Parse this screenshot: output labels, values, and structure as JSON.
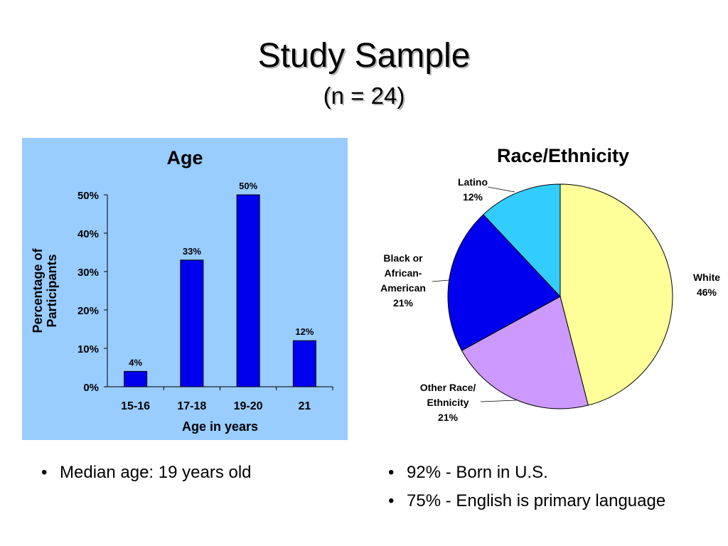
{
  "slide": {
    "title": "Study Sample",
    "subtitle": "(n = 24)"
  },
  "bullets_left": [
    "Median age:  19 years old"
  ],
  "bullets_right": [
    "92% - Born in U.S.",
    "75% - English is primary language"
  ],
  "colors": {
    "age_panel_bg": "#99ccff",
    "bar": "#0000ee",
    "white": "#ffff99",
    "other": "#cc99ff",
    "black": "#0000ee",
    "latino": "#33ccff"
  },
  "chart_data": [
    {
      "type": "bar",
      "title": "Age",
      "xlabel": "Age in years",
      "ylabel": "Percentage of Participants",
      "categories": [
        "15-16",
        "17-18",
        "19-20",
        "21"
      ],
      "values": [
        4,
        33,
        50,
        12
      ],
      "value_labels": [
        "4%",
        "33%",
        "50%",
        "12%"
      ],
      "ylim": [
        0,
        50
      ],
      "y_ticks": [
        "0%",
        "10%",
        "20%",
        "30%",
        "40%",
        "50%"
      ],
      "grid": false,
      "legend": "none"
    },
    {
      "type": "pie",
      "title": "Race/Ethnicity",
      "slices": [
        {
          "label": "White",
          "value": 46,
          "value_label": "46%"
        },
        {
          "label": "Other Race/ Ethnicity",
          "value": 21,
          "value_label": "21%"
        },
        {
          "label": "Black or African-American",
          "value": 21,
          "value_label": "21%"
        },
        {
          "label": "Latino",
          "value": 12,
          "value_label": "12%"
        }
      ],
      "legend": "none"
    }
  ]
}
